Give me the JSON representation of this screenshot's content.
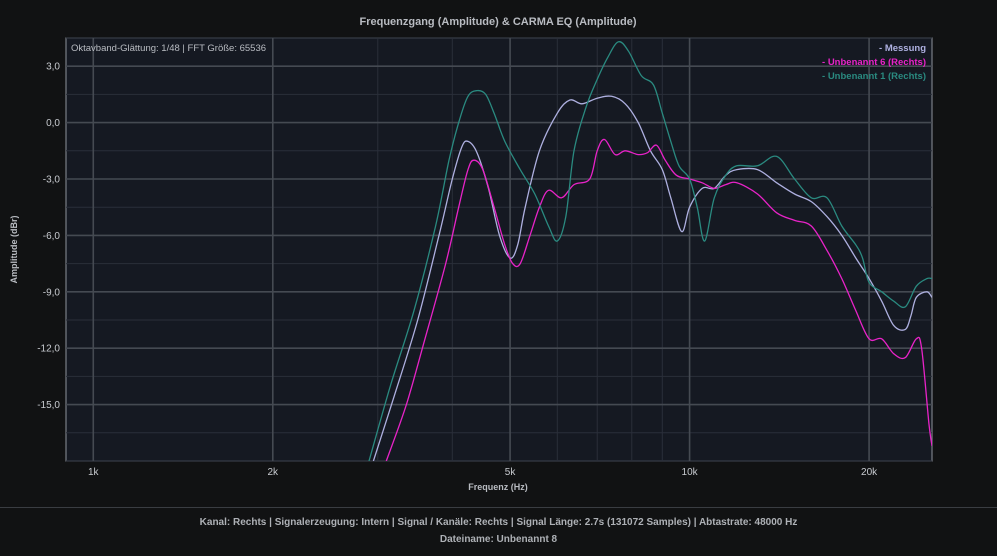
{
  "chart_data": {
    "type": "line",
    "title": "Frequenzgang (Amplitude) & CARMA EQ (Amplitude)",
    "xlabel": "Frequenz (Hz)",
    "ylabel": "Amplitude (dBr)",
    "xscale": "log",
    "xlim": [
      900,
      25500
    ],
    "ylim": [
      -18.0,
      4.5
    ],
    "xticks": [
      1000,
      2000,
      5000,
      10000,
      20000
    ],
    "xtick_labels": [
      "1k",
      "2k",
      "5k",
      "10k",
      "20k"
    ],
    "yticks": [
      3,
      0,
      -3,
      -6,
      -9,
      -12,
      -15
    ],
    "ytick_labels": [
      "3,0",
      "0,0",
      "-3,0",
      "-6,0",
      "-9,0",
      "-12,0",
      "-15,0"
    ],
    "grid": true,
    "legend_position": "top-right",
    "info_text": "Oktavband-Glättung: 1/48 | FFT Größe: 65536",
    "series": [
      {
        "name": "- Messung",
        "color": "#aeb0e0",
        "points": [
          [
            2950,
            -18.0
          ],
          [
            3200,
            -14.5
          ],
          [
            3500,
            -10.5
          ],
          [
            3800,
            -6.0
          ],
          [
            4000,
            -3.0
          ],
          [
            4150,
            -1.3
          ],
          [
            4250,
            -1.0
          ],
          [
            4400,
            -1.6
          ],
          [
            4600,
            -3.5
          ],
          [
            4800,
            -6.0
          ],
          [
            5000,
            -7.2
          ],
          [
            5150,
            -6.5
          ],
          [
            5300,
            -4.5
          ],
          [
            5600,
            -1.5
          ],
          [
            6000,
            0.5
          ],
          [
            6300,
            1.2
          ],
          [
            6600,
            1.0
          ],
          [
            7000,
            1.3
          ],
          [
            7400,
            1.4
          ],
          [
            7800,
            1.0
          ],
          [
            8200,
            0.0
          ],
          [
            8600,
            -1.5
          ],
          [
            9000,
            -2.5
          ],
          [
            9300,
            -4.0
          ],
          [
            9700,
            -5.8
          ],
          [
            10000,
            -4.5
          ],
          [
            10500,
            -3.5
          ],
          [
            11000,
            -3.5
          ],
          [
            11500,
            -2.8
          ],
          [
            12000,
            -2.5
          ],
          [
            13000,
            -2.5
          ],
          [
            14000,
            -3.2
          ],
          [
            15000,
            -3.8
          ],
          [
            16000,
            -4.2
          ],
          [
            17000,
            -5.0
          ],
          [
            18000,
            -6.0
          ],
          [
            19000,
            -7.2
          ],
          [
            20000,
            -8.3
          ],
          [
            21000,
            -9.5
          ],
          [
            22000,
            -10.8
          ],
          [
            23000,
            -11.0
          ],
          [
            23500,
            -10.3
          ],
          [
            24000,
            -9.3
          ],
          [
            25000,
            -9.0
          ],
          [
            25500,
            -9.3
          ]
        ]
      },
      {
        "name": "- Unbenannt 6 (Rechts)",
        "color": "#e823c8",
        "points": [
          [
            3100,
            -18.0
          ],
          [
            3350,
            -15.0
          ],
          [
            3600,
            -11.5
          ],
          [
            3900,
            -7.5
          ],
          [
            4100,
            -4.5
          ],
          [
            4250,
            -2.5
          ],
          [
            4350,
            -2.0
          ],
          [
            4500,
            -2.5
          ],
          [
            4700,
            -4.5
          ],
          [
            4900,
            -6.5
          ],
          [
            5050,
            -7.5
          ],
          [
            5200,
            -7.5
          ],
          [
            5400,
            -6.0
          ],
          [
            5600,
            -4.5
          ],
          [
            5800,
            -3.6
          ],
          [
            6100,
            -4.0
          ],
          [
            6400,
            -3.3
          ],
          [
            6800,
            -3.0
          ],
          [
            7000,
            -1.5
          ],
          [
            7200,
            -0.9
          ],
          [
            7500,
            -1.7
          ],
          [
            7800,
            -1.5
          ],
          [
            8200,
            -1.7
          ],
          [
            8500,
            -1.6
          ],
          [
            8800,
            -1.2
          ],
          [
            9100,
            -2.0
          ],
          [
            9500,
            -2.8
          ],
          [
            10000,
            -3.0
          ],
          [
            10500,
            -3.2
          ],
          [
            11000,
            -3.5
          ],
          [
            11500,
            -3.3
          ],
          [
            12000,
            -3.2
          ],
          [
            13000,
            -3.8
          ],
          [
            14000,
            -4.8
          ],
          [
            15000,
            -5.2
          ],
          [
            16000,
            -5.5
          ],
          [
            17000,
            -6.8
          ],
          [
            18000,
            -8.3
          ],
          [
            19000,
            -10.0
          ],
          [
            20000,
            -11.5
          ],
          [
            21000,
            -11.5
          ],
          [
            22000,
            -12.3
          ],
          [
            23000,
            -12.5
          ],
          [
            24000,
            -11.5
          ],
          [
            24500,
            -12.0
          ],
          [
            25200,
            -16.0
          ],
          [
            25500,
            -17.2
          ]
        ]
      },
      {
        "name": "- Unbenannt 1 (Rechts)",
        "color": "#2a8a80",
        "points": [
          [
            2900,
            -18.0
          ],
          [
            3150,
            -14.0
          ],
          [
            3450,
            -10.0
          ],
          [
            3750,
            -5.5
          ],
          [
            3950,
            -2.0
          ],
          [
            4100,
            0.0
          ],
          [
            4250,
            1.4
          ],
          [
            4400,
            1.7
          ],
          [
            4550,
            1.5
          ],
          [
            4700,
            0.5
          ],
          [
            4900,
            -1.0
          ],
          [
            5200,
            -2.5
          ],
          [
            5500,
            -3.8
          ],
          [
            5800,
            -5.5
          ],
          [
            6000,
            -6.3
          ],
          [
            6200,
            -5.0
          ],
          [
            6400,
            -1.5
          ],
          [
            6700,
            0.8
          ],
          [
            7000,
            2.3
          ],
          [
            7300,
            3.5
          ],
          [
            7600,
            4.3
          ],
          [
            7900,
            3.8
          ],
          [
            8300,
            2.5
          ],
          [
            8700,
            2.0
          ],
          [
            9000,
            0.5
          ],
          [
            9300,
            -1.0
          ],
          [
            9600,
            -2.3
          ],
          [
            10000,
            -3.0
          ],
          [
            10300,
            -4.5
          ],
          [
            10600,
            -6.3
          ],
          [
            11000,
            -4.0
          ],
          [
            11500,
            -2.8
          ],
          [
            12000,
            -2.3
          ],
          [
            13000,
            -2.3
          ],
          [
            14000,
            -1.8
          ],
          [
            15000,
            -3.0
          ],
          [
            16000,
            -4.0
          ],
          [
            17000,
            -4.0
          ],
          [
            18000,
            -5.5
          ],
          [
            19000,
            -6.5
          ],
          [
            19500,
            -7.2
          ],
          [
            20000,
            -8.5
          ],
          [
            21000,
            -9.0
          ],
          [
            22000,
            -9.5
          ],
          [
            23000,
            -9.8
          ],
          [
            24000,
            -8.7
          ],
          [
            25000,
            -8.3
          ],
          [
            25500,
            -8.3
          ]
        ]
      }
    ]
  },
  "footer": {
    "line1": "Kanal: Rechts  |  Signalerzeugung: Intern  |  Signal / Kanäle: Rechts  |  Signal Länge: 2.7s (131072 Samples)  |  Abtastrate: 48000 Hz",
    "line2": "Dateiname: Unbenannt 8"
  }
}
